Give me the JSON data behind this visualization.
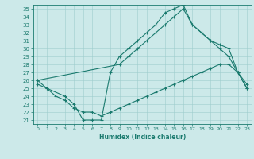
{
  "xlabel": "Humidex (Indice chaleur)",
  "bg_color": "#cce9e9",
  "line_color": "#1a7a6e",
  "grid_color": "#9ecece",
  "xlim": [
    -0.5,
    23.5
  ],
  "ylim": [
    20.5,
    35.5
  ],
  "xticks": [
    0,
    1,
    2,
    3,
    4,
    5,
    6,
    7,
    8,
    9,
    10,
    11,
    12,
    13,
    14,
    15,
    16,
    17,
    18,
    19,
    20,
    21,
    22,
    23
  ],
  "yticks": [
    21,
    22,
    23,
    24,
    25,
    26,
    27,
    28,
    29,
    30,
    31,
    32,
    33,
    34,
    35
  ],
  "curve1_x": [
    0,
    1,
    3,
    4,
    5,
    6,
    7,
    8,
    9,
    10,
    11,
    12,
    13,
    14,
    15,
    16,
    17,
    18,
    19,
    20,
    21,
    22,
    23
  ],
  "curve1_y": [
    26,
    25,
    24,
    23,
    21,
    21,
    21,
    27,
    29,
    30,
    31,
    32,
    33,
    34.5,
    35,
    35.5,
    33,
    32,
    31,
    30,
    29,
    27,
    25
  ],
  "curve2_x": [
    0,
    9,
    10,
    11,
    12,
    13,
    14,
    15,
    16,
    17,
    18,
    19,
    20,
    21,
    22,
    23
  ],
  "curve2_y": [
    26,
    28,
    29,
    30,
    31,
    32,
    33,
    34,
    35,
    33,
    32,
    31,
    30.5,
    30,
    27,
    25
  ],
  "curve3_x": [
    0,
    1,
    2,
    3,
    4,
    5,
    6,
    7,
    8,
    9,
    10,
    11,
    12,
    13,
    14,
    15,
    16,
    17,
    18,
    19,
    20,
    21,
    22,
    23
  ],
  "curve3_y": [
    25.5,
    25,
    24,
    23.5,
    22.5,
    22,
    22,
    21.5,
    22,
    22.5,
    23,
    23.5,
    24,
    24.5,
    25,
    25.5,
    26,
    26.5,
    27,
    27.5,
    28,
    28,
    27,
    25.5
  ]
}
